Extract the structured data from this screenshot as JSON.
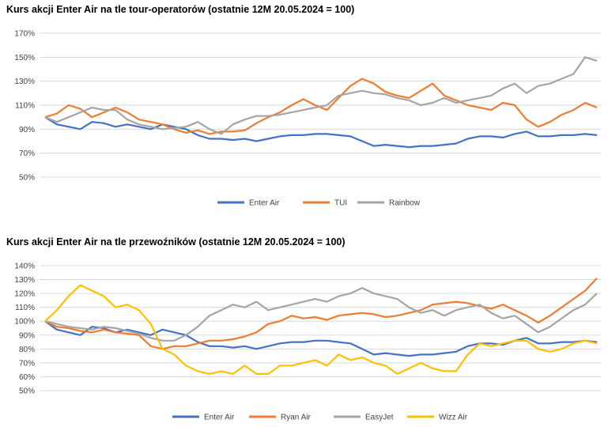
{
  "chart_data": [
    {
      "type": "line",
      "title": "Kurs akcji Enter Air na tle tour-operatorów (ostatnie 12M 20.05.2024 = 100)",
      "ylim": [
        50,
        170
      ],
      "yticks": [
        "50%",
        "70%",
        "90%",
        "110%",
        "130%",
        "150%",
        "170%"
      ],
      "ytick_values": [
        50,
        70,
        90,
        110,
        130,
        150,
        170
      ],
      "grid": true,
      "legend_position": "bottom",
      "n_points": 48,
      "series": [
        {
          "name": "Enter Air",
          "color": "#4472c4",
          "values": [
            100,
            94,
            92,
            90,
            96,
            95,
            92,
            94,
            92,
            90,
            94,
            92,
            90,
            85,
            82,
            82,
            81,
            82,
            80,
            82,
            84,
            85,
            85,
            86,
            86,
            85,
            84,
            80,
            76,
            77,
            76,
            75,
            76,
            76,
            77,
            78,
            82,
            84,
            84,
            83,
            86,
            88,
            84,
            84,
            85,
            85,
            86,
            85
          ]
        },
        {
          "name": "TUI",
          "color": "#ed7d31",
          "values": [
            100,
            103,
            110,
            107,
            100,
            104,
            108,
            104,
            98,
            96,
            94,
            90,
            87,
            89,
            86,
            88,
            88,
            89,
            95,
            100,
            104,
            110,
            115,
            110,
            106,
            116,
            126,
            132,
            128,
            121,
            118,
            116,
            122,
            128,
            118,
            114,
            110,
            108,
            106,
            112,
            110,
            98,
            92,
            96,
            102,
            106,
            112,
            108
          ]
        },
        {
          "name": "Rainbow",
          "color": "#a5a5a5",
          "values": [
            100,
            96,
            100,
            104,
            108,
            106,
            106,
            98,
            94,
            92,
            90,
            91,
            92,
            96,
            90,
            86,
            94,
            98,
            101,
            101,
            102,
            104,
            106,
            108,
            110,
            118,
            120,
            122,
            120,
            119,
            116,
            114,
            110,
            112,
            116,
            112,
            114,
            116,
            118,
            124,
            128,
            120,
            126,
            128,
            132,
            136,
            150,
            147
          ]
        }
      ]
    },
    {
      "type": "line",
      "title": "Kurs akcji Enter Air na tle przewoźników (ostatnie 12M 20.05.2024 = 100)",
      "ylim": [
        50,
        140
      ],
      "yticks": [
        "50%",
        "60%",
        "70%",
        "80%",
        "90%",
        "100%",
        "110%",
        "120%",
        "130%",
        "140%"
      ],
      "ytick_values": [
        50,
        60,
        70,
        80,
        90,
        100,
        110,
        120,
        130,
        140
      ],
      "grid": true,
      "legend_position": "bottom",
      "n_points": 48,
      "series": [
        {
          "name": "Enter Air",
          "color": "#4472c4",
          "values": [
            100,
            94,
            92,
            90,
            96,
            95,
            92,
            94,
            92,
            90,
            94,
            92,
            90,
            85,
            82,
            82,
            81,
            82,
            80,
            82,
            84,
            85,
            85,
            86,
            86,
            85,
            84,
            80,
            76,
            77,
            76,
            75,
            76,
            76,
            77,
            78,
            82,
            84,
            84,
            83,
            86,
            88,
            84,
            84,
            85,
            85,
            86,
            85
          ]
        },
        {
          "name": "Ryan Air",
          "color": "#ed7d31",
          "values": [
            100,
            96,
            95,
            93,
            92,
            94,
            92,
            91,
            90,
            82,
            80,
            82,
            82,
            84,
            86,
            86,
            87,
            89,
            92,
            98,
            100,
            104,
            102,
            103,
            101,
            104,
            105,
            106,
            105,
            103,
            104,
            106,
            108,
            112,
            113,
            114,
            113,
            111,
            109,
            112,
            108,
            104,
            99,
            104,
            110,
            116,
            122,
            131
          ]
        },
        {
          "name": "EasyJet",
          "color": "#a5a5a5",
          "values": [
            100,
            98,
            96,
            95,
            94,
            96,
            95,
            93,
            91,
            88,
            86,
            86,
            90,
            96,
            104,
            108,
            112,
            110,
            114,
            108,
            110,
            112,
            114,
            116,
            114,
            118,
            120,
            124,
            120,
            118,
            116,
            110,
            106,
            108,
            104,
            108,
            110,
            112,
            106,
            102,
            104,
            98,
            92,
            96,
            102,
            108,
            112,
            120
          ]
        },
        {
          "name": "Wizz Air",
          "color": "#ffc000",
          "values": [
            100,
            108,
            118,
            126,
            122,
            118,
            110,
            112,
            108,
            98,
            80,
            76,
            68,
            64,
            62,
            64,
            62,
            68,
            62,
            62,
            68,
            68,
            70,
            72,
            68,
            76,
            72,
            74,
            70,
            68,
            62,
            66,
            70,
            66,
            64,
            64,
            76,
            84,
            82,
            84,
            86,
            86,
            80,
            78,
            80,
            84,
            86,
            84
          ]
        }
      ]
    }
  ]
}
